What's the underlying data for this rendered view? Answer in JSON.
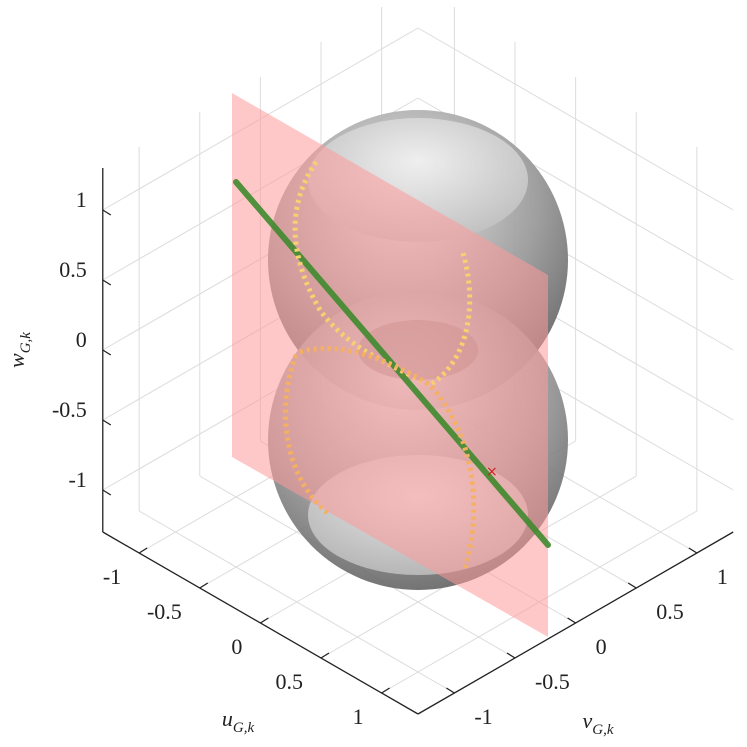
{
  "chart_data": {
    "type": "surface3d",
    "xlabel": "u",
    "xlabel_sub": "G,k",
    "ylabel": "v",
    "ylabel_sub": "G,k",
    "zlabel": "w",
    "zlabel_sub": "G,k",
    "xlim": [
      -1.3,
      1.3
    ],
    "xticks": [
      -1,
      -0.5,
      0,
      0.5,
      1
    ],
    "ylim": [
      -1.3,
      1.3
    ],
    "yticks": [
      -1,
      -0.5,
      0,
      0.5,
      1
    ],
    "zlim": [
      -1.3,
      1.3
    ],
    "zticks": [
      -1,
      -0.5,
      0,
      0.5,
      1
    ],
    "grid": true
  }
}
